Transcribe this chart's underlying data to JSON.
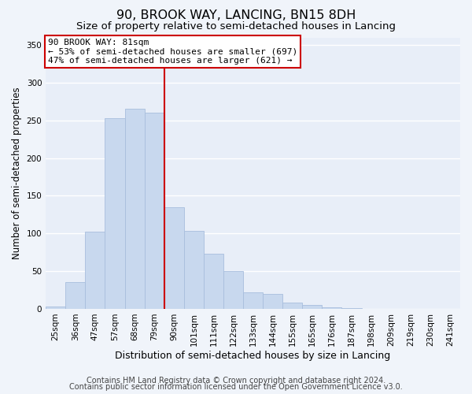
{
  "title": "90, BROOK WAY, LANCING, BN15 8DH",
  "subtitle": "Size of property relative to semi-detached houses in Lancing",
  "xlabel": "Distribution of semi-detached houses by size in Lancing",
  "ylabel": "Number of semi-detached properties",
  "bar_labels": [
    "25sqm",
    "36sqm",
    "47sqm",
    "57sqm",
    "68sqm",
    "79sqm",
    "90sqm",
    "101sqm",
    "111sqm",
    "122sqm",
    "133sqm",
    "144sqm",
    "155sqm",
    "165sqm",
    "176sqm",
    "187sqm",
    "198sqm",
    "209sqm",
    "219sqm",
    "230sqm",
    "241sqm"
  ],
  "bar_values": [
    3,
    35,
    102,
    253,
    265,
    260,
    135,
    103,
    73,
    50,
    22,
    20,
    8,
    5,
    2,
    1,
    0,
    0,
    0,
    0,
    0
  ],
  "bar_color": "#c8d8ee",
  "bar_edge_color": "#a8bedd",
  "vline_color": "#cc0000",
  "annotation_line1": "90 BROOK WAY: 81sqm",
  "annotation_line2": "← 53% of semi-detached houses are smaller (697)",
  "annotation_line3": "47% of semi-detached houses are larger (621) →",
  "annotation_box_color": "#ffffff",
  "annotation_box_edge_color": "#cc0000",
  "footer_line1": "Contains HM Land Registry data © Crown copyright and database right 2024.",
  "footer_line2": "Contains public sector information licensed under the Open Government Licence v3.0.",
  "ylim": [
    0,
    360
  ],
  "yticks": [
    0,
    50,
    100,
    150,
    200,
    250,
    300,
    350
  ],
  "background_color": "#f0f4fa",
  "plot_background": "#e8eef8",
  "grid_color": "#ffffff",
  "title_fontsize": 11.5,
  "subtitle_fontsize": 9.5,
  "ylabel_fontsize": 8.5,
  "xlabel_fontsize": 9,
  "tick_fontsize": 7.5,
  "annotation_fontsize": 8,
  "footer_fontsize": 7
}
